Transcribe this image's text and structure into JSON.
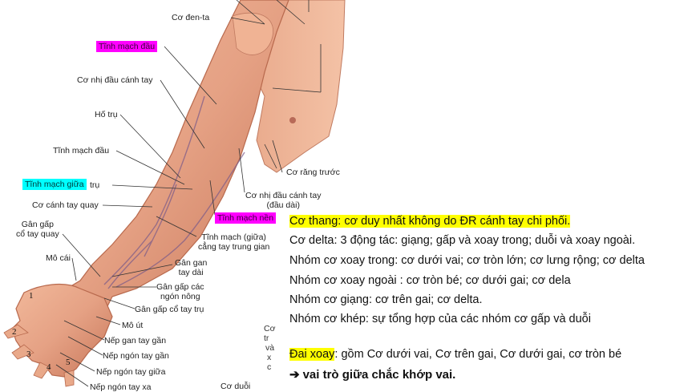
{
  "labels": {
    "co_den_ta": "Cơ đen-ta",
    "tinh_mach_dau_top": "Tĩnh mạch đầu",
    "co_nhi_dau_canh_tay": "Cơ nhị đầu cánh tay",
    "ho_tru": "Hố trụ",
    "tinh_mach_dau_mid": "Tĩnh mạch đầu",
    "tinh_mach_giua": "Tĩnh mạch giữa",
    "tru": "trụ",
    "co_canh_tay_quay": "Cơ cánh tay quay",
    "gan_gap_line1": "Gân gấp",
    "gan_gap_line2": "cổ tay quay",
    "mo_cai": "Mô cái",
    "co_rang_truoc": "Cơ răng trước",
    "co_nhi_dau_dai_line1": "Cơ nhị đầu cánh tay",
    "co_nhi_dau_dai_line2": "(đầu dài)",
    "tinh_mach_nen": "Tĩnh mạch nền",
    "tm_giua_line1": "Tĩnh mạch (giữa)",
    "tm_giua_line2": "cẳng tay trung gian",
    "gan_gan_line1": "Gân gan",
    "gan_gan_line2": "tay dài",
    "gan_gap_cac_line1": "Gân gấp các",
    "gan_gap_cac_line2": "ngón nông",
    "gan_gap_co_tay_tru": "Gân gấp cổ tay trụ",
    "mo_ut": "Mô út",
    "nep_gan_tay_gan": "Nếp gan tay gần",
    "nep_ngon_tay_gan": "Nếp ngón tay gần",
    "nep_ngon_tay_giua": "Nếp ngón tay giữa",
    "nep_ngon_tay_xa": "Nếp ngón tay xa",
    "co_duoi": "Cơ duỗi",
    "partial_co": "Cơ",
    "partial_tr": "tr",
    "partial_va": "và",
    "partial_x": "x",
    "partial_c": "c"
  },
  "finger_numbers": [
    "1",
    "2",
    "3",
    "4",
    "5"
  ],
  "notes": {
    "line1": "Cơ thang: cơ duy nhất không do ĐR cánh tay chi phối.",
    "line2": "Cơ delta: 3 động tác: giạng; gấp và xoay trong; duỗi và xoay ngoài.",
    "line3": "Nhóm cơ xoay trong: cơ dưới vai; cơ tròn lớn; cơ lưng rộng; cơ delta",
    "line4": "Nhóm cơ xoay ngoài : cơ tròn bé; cơ dưới gai; cơ dela",
    "line5": "Nhóm cơ giạng: cơ trên gai; cơ delta.",
    "line6": "Nhóm cơ khép: sự tổng hợp của các nhóm cơ gấp và duỗi",
    "line7_highlight": "Đai xoay",
    "line7_rest": ": gồm Cơ dưới vai, Cơ trên gai, Cơ dưới gai, cơ tròn bé",
    "arrow": "➔",
    "line8": "vai trò giữa chắc khớp vai."
  },
  "colors": {
    "magenta_highlight": "#ff00ff",
    "cyan_highlight": "#00ffff",
    "yellow_highlight": "#ffff00",
    "skin": "#e9a98a",
    "skin_shadow": "#c9785a"
  }
}
